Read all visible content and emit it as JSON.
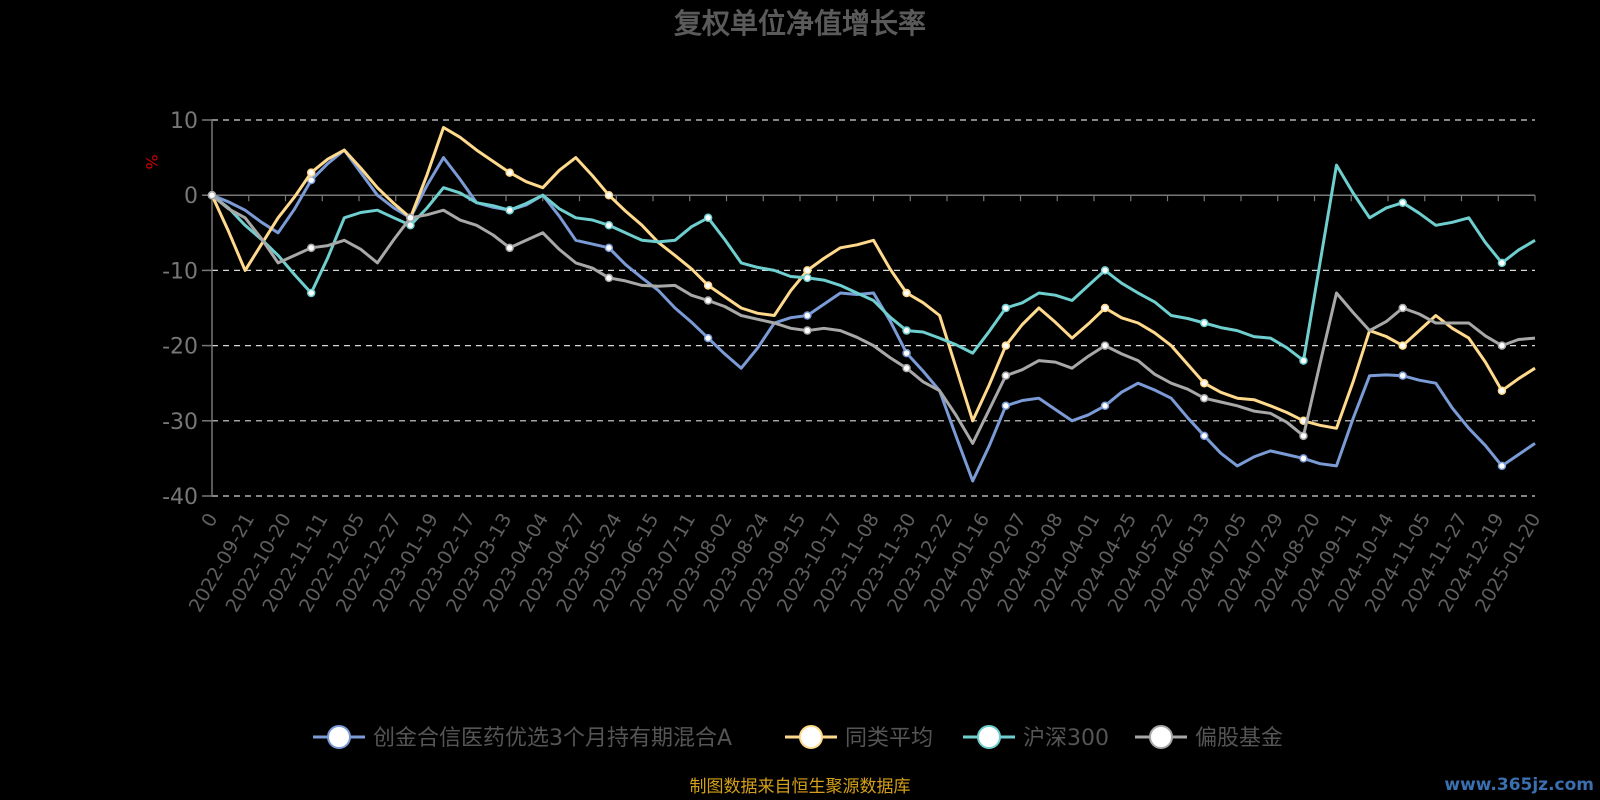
{
  "chart_data": {
    "type": "line",
    "title": "复权单位净值增长率",
    "y_unit": "%",
    "ylim": [
      -40,
      10
    ],
    "y_ticks": [
      10,
      0,
      -10,
      -20,
      -30,
      -40
    ],
    "grid": "dashed horizontal",
    "x_ticks": [
      "0",
      "2022-09-21",
      "2022-10-20",
      "2022-11-11",
      "2022-12-05",
      "2022-12-27",
      "2023-01-19",
      "2023-02-17",
      "2023-03-13",
      "2023-04-04",
      "2023-04-27",
      "2023-05-24",
      "2023-06-15",
      "2023-07-11",
      "2023-08-02",
      "2023-08-24",
      "2023-09-15",
      "2023-10-17",
      "2023-11-08",
      "2023-11-30",
      "2023-12-22",
      "2024-01-16",
      "2024-02-07",
      "2024-03-08",
      "2024-04-01",
      "2024-04-25",
      "2024-05-22",
      "2024-06-13",
      "2024-07-05",
      "2024-07-29",
      "2024-08-20",
      "2024-09-11",
      "2024-10-14",
      "2024-11-05",
      "2024-11-27",
      "2024-12-19",
      "2025-01-20"
    ],
    "legend_position": "bottom",
    "series": [
      {
        "name": "创金合信医药优选3个月持有期混合A",
        "color": "#7b9bd6",
        "values": [
          0,
          -2,
          -5,
          2,
          6,
          0,
          -3,
          5,
          -1,
          -2,
          0,
          -6,
          -7,
          -11,
          -15,
          -19,
          -23,
          -17,
          -16,
          -13,
          -13,
          -21,
          -26,
          -38,
          -28,
          -27,
          -30,
          -28,
          -25,
          -27,
          -32,
          -36,
          -34,
          -35,
          -36,
          -24,
          -24,
          -25,
          -31,
          -36,
          -33
        ]
      },
      {
        "name": "同类平均",
        "color": "#ffd98c",
        "values": [
          0,
          -10,
          -3,
          3,
          6,
          1,
          -3,
          9,
          6,
          3,
          1,
          5,
          0,
          -4,
          -8,
          -12,
          -15,
          -16,
          -10,
          -7,
          -6,
          -13,
          -16,
          -30,
          -20,
          -15,
          -19,
          -15,
          -17,
          -20,
          -25,
          -27,
          -28,
          -30,
          -31,
          -18,
          -20,
          -16,
          -19,
          -26,
          -23
        ]
      },
      {
        "name": "沪深300",
        "color": "#6fcfcf",
        "values": [
          0,
          -4,
          -8,
          -13,
          -3,
          -2,
          -4,
          1,
          -1,
          -2,
          0,
          -3,
          -4,
          -6,
          -6,
          -3,
          -9,
          -10,
          -11,
          -12,
          -14,
          -18,
          -19,
          -21,
          -15,
          -13,
          -14,
          -10,
          -13,
          -16,
          -17,
          -18,
          -19,
          -22,
          4,
          -3,
          -1,
          -4,
          -3,
          -9,
          -6
        ]
      },
      {
        "name": "偏股基金",
        "color": "#a8a8a8",
        "values": [
          0,
          -3,
          -9,
          -7,
          -6,
          -9,
          -3,
          -2,
          -4,
          -7,
          -5,
          -9,
          -11,
          -12,
          -12,
          -14,
          -16,
          -17,
          -18,
          -18,
          -20,
          -23,
          -26,
          -33,
          -24,
          -22,
          -23,
          -20,
          -22,
          -25,
          -27,
          -28,
          -29,
          -32,
          -13,
          -18,
          -15,
          -17,
          -17,
          -20,
          -19
        ]
      }
    ]
  },
  "footer": {
    "source": "制图数据来自恒生聚源数据库",
    "watermark": "www.365jz.com"
  }
}
